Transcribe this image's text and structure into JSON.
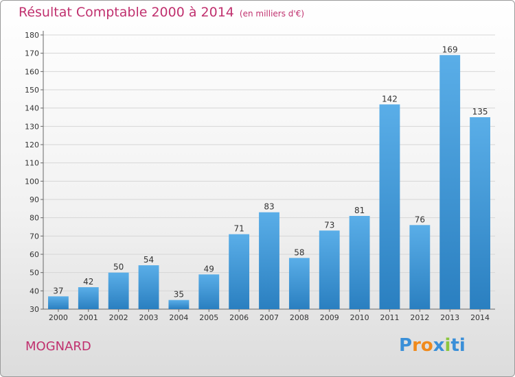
{
  "header": {
    "title": "Résultat Comptable 2000 à 2014",
    "unit": "(en milliers d'€)"
  },
  "footer": {
    "commune": "MOGNARD",
    "logo_text": "Proxiti"
  },
  "colors": {
    "title": "#c0306e",
    "bar_top": "#5aaee8",
    "bar_bottom": "#2a7fc0",
    "logo": [
      "#3a8fd8",
      "#f08a1c",
      "#f08a1c",
      "#3a8fd8",
      "#8cc63f",
      "#3a8fd8",
      "#3a8fd8"
    ]
  },
  "chart_data": {
    "type": "bar",
    "categories": [
      "2000",
      "2001",
      "2002",
      "2003",
      "2004",
      "2005",
      "2006",
      "2007",
      "2008",
      "2009",
      "2010",
      "2011",
      "2012",
      "2013",
      "2014"
    ],
    "values": [
      37,
      42,
      50,
      54,
      35,
      49,
      71,
      83,
      58,
      73,
      81,
      142,
      76,
      169,
      135
    ],
    "ylim": [
      30,
      180
    ],
    "yticks": [
      30,
      40,
      50,
      60,
      70,
      80,
      90,
      100,
      110,
      120,
      130,
      140,
      150,
      160,
      170,
      180
    ],
    "grid": true
  }
}
